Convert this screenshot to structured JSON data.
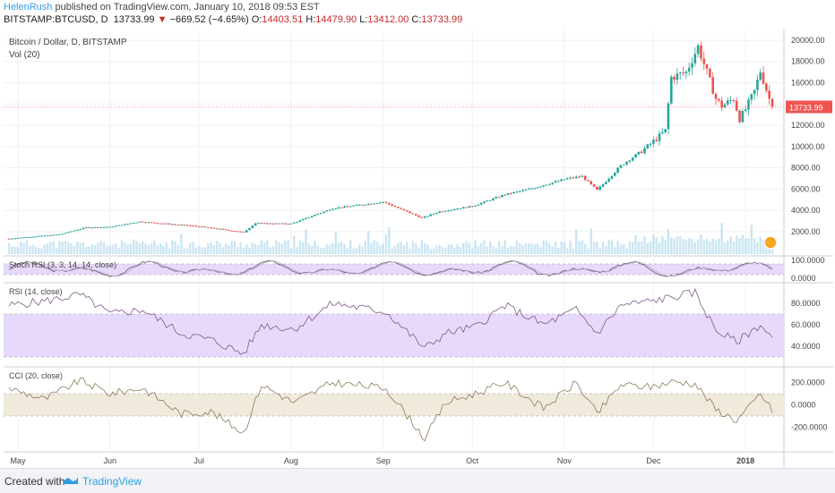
{
  "header": {
    "user": "HelenRush",
    "published": "published on TradingView.com, January 10, 2018 09:53 EST"
  },
  "symbol": {
    "ticker": "BITSTAMP:BTCUSD, D",
    "last": "13733.99",
    "change_arrow": "▼",
    "change": "−669.52 (−4.65%)",
    "o_label": "O:",
    "o": "14403.51",
    "h_label": "H:",
    "h": "14479.90",
    "l_label": "L:",
    "l": "13412.00",
    "c_label": "C:",
    "c": "13733.99"
  },
  "colors": {
    "up": "#26a69a",
    "down": "#ef5350",
    "price_line": "#ef5350",
    "band": "#e7d9fb",
    "cci_band": "#f0eadc",
    "volume": "#9fd1e8",
    "brand": "#2f9ee8"
  },
  "chart_data": [
    {
      "type": "candlestick",
      "title": "Bitcoin / Dollar, D, BITSTAMP",
      "subtitle": "Vol (20)",
      "x_ticks": [
        "May",
        "Jun",
        "Jul",
        "Aug",
        "Sep",
        "Oct",
        "Nov",
        "Dec",
        "2018"
      ],
      "y_ticks": [
        "2000.00",
        "4000.00",
        "6000.00",
        "8000.00",
        "10000.00",
        "12000.00",
        "14000.00",
        "16000.00",
        "18000.00",
        "20000.00"
      ],
      "ylim": [
        400,
        20500
      ],
      "last_price_label": "13733.99",
      "close_anchors": [
        [
          "2017-04-28",
          1350
        ],
        [
          "2017-05-15",
          1750
        ],
        [
          "2017-05-24",
          2400
        ],
        [
          "2017-06-01",
          2450
        ],
        [
          "2017-06-11",
          2950
        ],
        [
          "2017-06-20",
          2750
        ],
        [
          "2017-07-01",
          2500
        ],
        [
          "2017-07-16",
          1950
        ],
        [
          "2017-07-20",
          2800
        ],
        [
          "2017-08-01",
          2750
        ],
        [
          "2017-08-15",
          4200
        ],
        [
          "2017-09-01",
          4800
        ],
        [
          "2017-09-14",
          3300
        ],
        [
          "2017-09-20",
          3900
        ],
        [
          "2017-10-01",
          4400
        ],
        [
          "2017-10-12",
          5500
        ],
        [
          "2017-10-20",
          6000
        ],
        [
          "2017-11-02",
          7000
        ],
        [
          "2017-11-07",
          7200
        ],
        [
          "2017-11-12",
          5900
        ],
        [
          "2017-11-20",
          8200
        ],
        [
          "2017-11-29",
          10000
        ],
        [
          "2017-12-05",
          11500
        ],
        [
          "2017-12-07",
          16500
        ],
        [
          "2017-12-12",
          17000
        ],
        [
          "2017-12-16",
          19400
        ],
        [
          "2017-12-22",
          14500
        ],
        [
          "2017-12-24",
          13800
        ],
        [
          "2017-12-28",
          14500
        ],
        [
          "2017-12-30",
          12600
        ],
        [
          "2018-01-01",
          13500
        ],
        [
          "2018-01-04",
          15200
        ],
        [
          "2018-01-06",
          17100
        ],
        [
          "2018-01-09",
          14500
        ],
        [
          "2018-01-10",
          13733.99
        ]
      ]
    },
    {
      "type": "line",
      "title": "Stoch RSI (3, 3, 14, 14, close)",
      "y_ticks": [
        "0.0000",
        "100.0000"
      ],
      "ylim": [
        0,
        100
      ],
      "band": [
        20,
        80
      ]
    },
    {
      "type": "line",
      "title": "RSI (14, close)",
      "y_ticks": [
        "40.0000",
        "60.0000",
        "80.0000"
      ],
      "ylim": [
        25,
        95
      ],
      "band": [
        30,
        70
      ],
      "anchors": [
        [
          "2017-04-28",
          78
        ],
        [
          "2017-05-10",
          82
        ],
        [
          "2017-05-22",
          88
        ],
        [
          "2017-06-01",
          70
        ],
        [
          "2017-06-12",
          74
        ],
        [
          "2017-06-25",
          52
        ],
        [
          "2017-07-05",
          46
        ],
        [
          "2017-07-16",
          33
        ],
        [
          "2017-07-22",
          60
        ],
        [
          "2017-08-02",
          56
        ],
        [
          "2017-08-15",
          80
        ],
        [
          "2017-09-02",
          72
        ],
        [
          "2017-09-15",
          38
        ],
        [
          "2017-09-22",
          52
        ],
        [
          "2017-10-02",
          58
        ],
        [
          "2017-10-12",
          78
        ],
        [
          "2017-10-25",
          60
        ],
        [
          "2017-11-05",
          74
        ],
        [
          "2017-11-12",
          52
        ],
        [
          "2017-11-20",
          78
        ],
        [
          "2017-11-30",
          82
        ],
        [
          "2017-12-08",
          86
        ],
        [
          "2017-12-15",
          90
        ],
        [
          "2017-12-22",
          55
        ],
        [
          "2017-12-29",
          44
        ],
        [
          "2018-01-02",
          52
        ],
        [
          "2018-01-06",
          60
        ],
        [
          "2018-01-10",
          47
        ]
      ]
    },
    {
      "type": "line",
      "title": "CCI (20, close)",
      "y_ticks": [
        "-200.0000",
        "0.0000",
        "200.0000"
      ],
      "ylim": [
        -380,
        300
      ],
      "band": [
        -100,
        100
      ],
      "anchors": [
        [
          "2017-04-28",
          150
        ],
        [
          "2017-05-10",
          50
        ],
        [
          "2017-05-22",
          220
        ],
        [
          "2017-06-01",
          100
        ],
        [
          "2017-06-12",
          150
        ],
        [
          "2017-06-25",
          -80
        ],
        [
          "2017-07-05",
          -60
        ],
        [
          "2017-07-16",
          -250
        ],
        [
          "2017-07-22",
          180
        ],
        [
          "2017-08-02",
          20
        ],
        [
          "2017-08-15",
          200
        ],
        [
          "2017-09-02",
          150
        ],
        [
          "2017-09-15",
          -300
        ],
        [
          "2017-09-22",
          20
        ],
        [
          "2017-10-02",
          100
        ],
        [
          "2017-10-12",
          200
        ],
        [
          "2017-10-25",
          -30
        ],
        [
          "2017-11-05",
          200
        ],
        [
          "2017-11-12",
          -80
        ],
        [
          "2017-11-20",
          180
        ],
        [
          "2017-11-30",
          160
        ],
        [
          "2017-12-08",
          210
        ],
        [
          "2017-12-15",
          190
        ],
        [
          "2017-12-22",
          -40
        ],
        [
          "2017-12-29",
          -140
        ],
        [
          "2018-01-02",
          -30
        ],
        [
          "2018-01-06",
          100
        ],
        [
          "2018-01-10",
          -50
        ]
      ]
    }
  ],
  "footer": {
    "created_with": "Created with",
    "brand": "TradingView"
  }
}
